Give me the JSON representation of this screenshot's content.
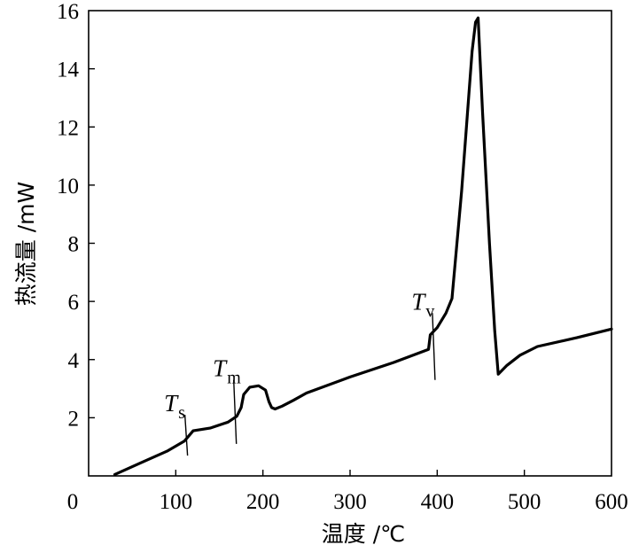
{
  "chart_data": {
    "type": "line",
    "title": "",
    "xlabel": "温度 /℃",
    "ylabel": "热流量 /mW",
    "xlim": [
      0,
      600
    ],
    "ylim": [
      0,
      16
    ],
    "x_ticks": [
      0,
      100,
      200,
      300,
      400,
      500,
      600
    ],
    "y_ticks": [
      2,
      4,
      6,
      8,
      10,
      12,
      14,
      16
    ],
    "x_tick_labels": [
      "0",
      "100",
      "200",
      "300",
      "400",
      "500",
      "600"
    ],
    "y_tick_labels": [
      "2",
      "4",
      "6",
      "8",
      "10",
      "12",
      "14",
      "16"
    ],
    "grid": false,
    "legend": "none",
    "series": [
      {
        "points": [
          [
            30,
            0.05
          ],
          [
            60,
            0.45
          ],
          [
            90,
            0.85
          ],
          [
            110,
            1.2
          ],
          [
            120,
            1.55
          ],
          [
            140,
            1.65
          ],
          [
            160,
            1.85
          ],
          [
            170,
            2.05
          ],
          [
            175,
            2.35
          ],
          [
            178,
            2.8
          ],
          [
            185,
            3.05
          ],
          [
            195,
            3.1
          ],
          [
            203,
            2.95
          ],
          [
            207,
            2.55
          ],
          [
            210,
            2.35
          ],
          [
            214,
            2.3
          ],
          [
            222,
            2.4
          ],
          [
            235,
            2.6
          ],
          [
            250,
            2.85
          ],
          [
            300,
            3.4
          ],
          [
            350,
            3.9
          ],
          [
            390,
            4.35
          ],
          [
            392,
            4.85
          ],
          [
            400,
            5.1
          ],
          [
            410,
            5.6
          ],
          [
            417,
            6.1
          ],
          [
            422,
            7.8
          ],
          [
            428,
            9.8
          ],
          [
            434,
            12.2
          ],
          [
            440,
            14.6
          ],
          [
            444,
            15.6
          ],
          [
            447,
            15.75
          ],
          [
            452,
            12.5
          ],
          [
            460,
            8.0
          ],
          [
            466,
            5.0
          ],
          [
            470,
            3.5
          ],
          [
            480,
            3.8
          ],
          [
            495,
            4.15
          ],
          [
            515,
            4.45
          ],
          [
            560,
            4.75
          ],
          [
            600,
            5.05
          ]
        ]
      }
    ],
    "annotations": [
      {
        "main": "T",
        "sub": "s",
        "x": 112,
        "y_top": 2.1,
        "y_bottom": 0.7
      },
      {
        "main": "T",
        "sub": "m",
        "x": 168,
        "y_top": 3.3,
        "y_bottom": 1.1
      },
      {
        "main": "T",
        "sub": "v",
        "x": 396,
        "y_top": 5.6,
        "y_bottom": 3.3
      }
    ]
  }
}
